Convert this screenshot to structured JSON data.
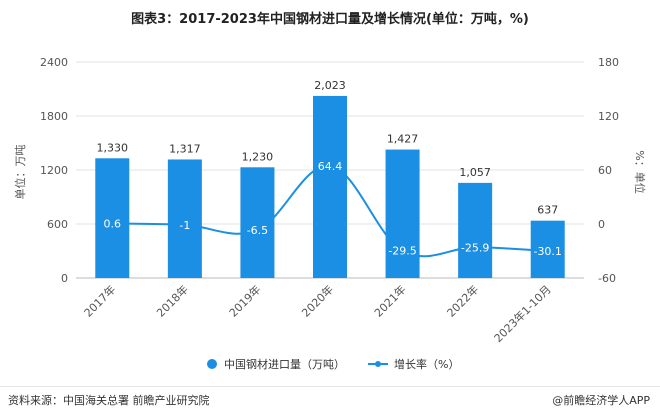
{
  "chart_data": {
    "type": "bar",
    "title": "图表3：2017-2023年中国钢材进口量及增长情况(单位：万吨，%)",
    "categories": [
      "2017年",
      "2018年",
      "2019年",
      "2020年",
      "2021年",
      "2022年",
      "2023年1-10月"
    ],
    "series": [
      {
        "name": "中国钢材进口量（万吨）",
        "type": "bar",
        "axis": "left",
        "values": [
          1330,
          1317,
          1230,
          2023,
          1427,
          1057,
          637
        ],
        "labels": [
          "1,330",
          "1,317",
          "1,230",
          "2,023",
          "1,427",
          "1,057",
          "637"
        ]
      },
      {
        "name": "增长率（%）",
        "type": "line",
        "axis": "right",
        "values": [
          0.6,
          -1,
          -6.5,
          64.4,
          -29.5,
          -25.9,
          -30.1
        ],
        "labels": [
          "0.6",
          "-1",
          "-6.5",
          "64.4",
          "-29.5",
          "-25.9",
          "-30.1"
        ]
      }
    ],
    "ylabel_left": "单位：万吨",
    "ylabel_right": "%：单位",
    "ylim_left": [
      0,
      2400
    ],
    "ylim_right": [
      -60,
      180
    ],
    "yticks_left": [
      "0",
      "600",
      "1200",
      "1800",
      "2400"
    ],
    "yticks_right": [
      "-60",
      "0",
      "60",
      "120",
      "180"
    ],
    "colors": {
      "bar": "#1a8fe3",
      "line": "#1a8fe3",
      "label_text": "#ffffff"
    },
    "grid": true,
    "legend_position": "bottom"
  },
  "footer": {
    "source": "资料来源：中国海关总署 前瞻产业研究院",
    "brand": "@前瞻经济学人APP"
  }
}
